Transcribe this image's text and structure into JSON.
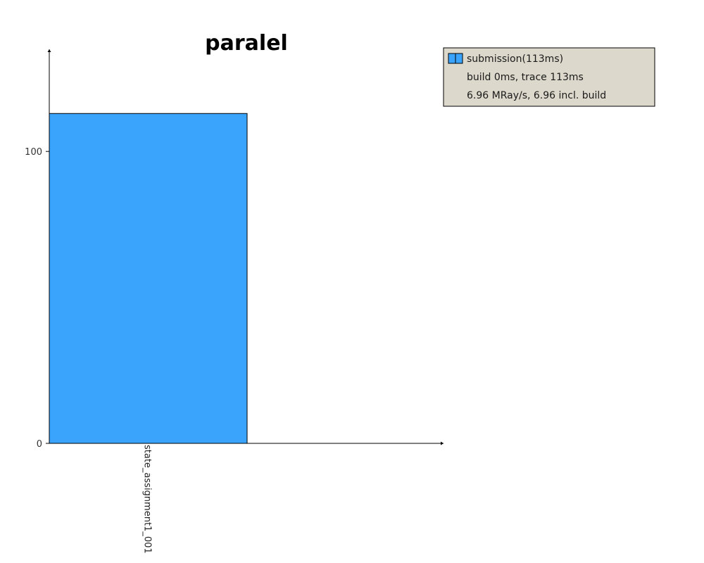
{
  "chart_data": {
    "type": "bar",
    "title": "paralel",
    "xlabel": "",
    "ylabel": "",
    "categories": [
      "state_assignment1_001"
    ],
    "series": [
      {
        "name": "submission(113ms)",
        "values": [
          113
        ],
        "color": "#3aa3fb"
      }
    ],
    "yticks": [
      0,
      100
    ],
    "ylim": [
      0,
      135
    ],
    "grid": false,
    "legend": {
      "placement": "top-right",
      "background": "#dcd8cb",
      "entries": [
        {
          "label": "submission(113ms)",
          "has_swatch": true
        },
        {
          "label": "build 0ms, trace 113ms",
          "has_swatch": false
        },
        {
          "label": "6.96 MRay/s, 6.96 incl. build",
          "has_swatch": false
        }
      ]
    }
  }
}
